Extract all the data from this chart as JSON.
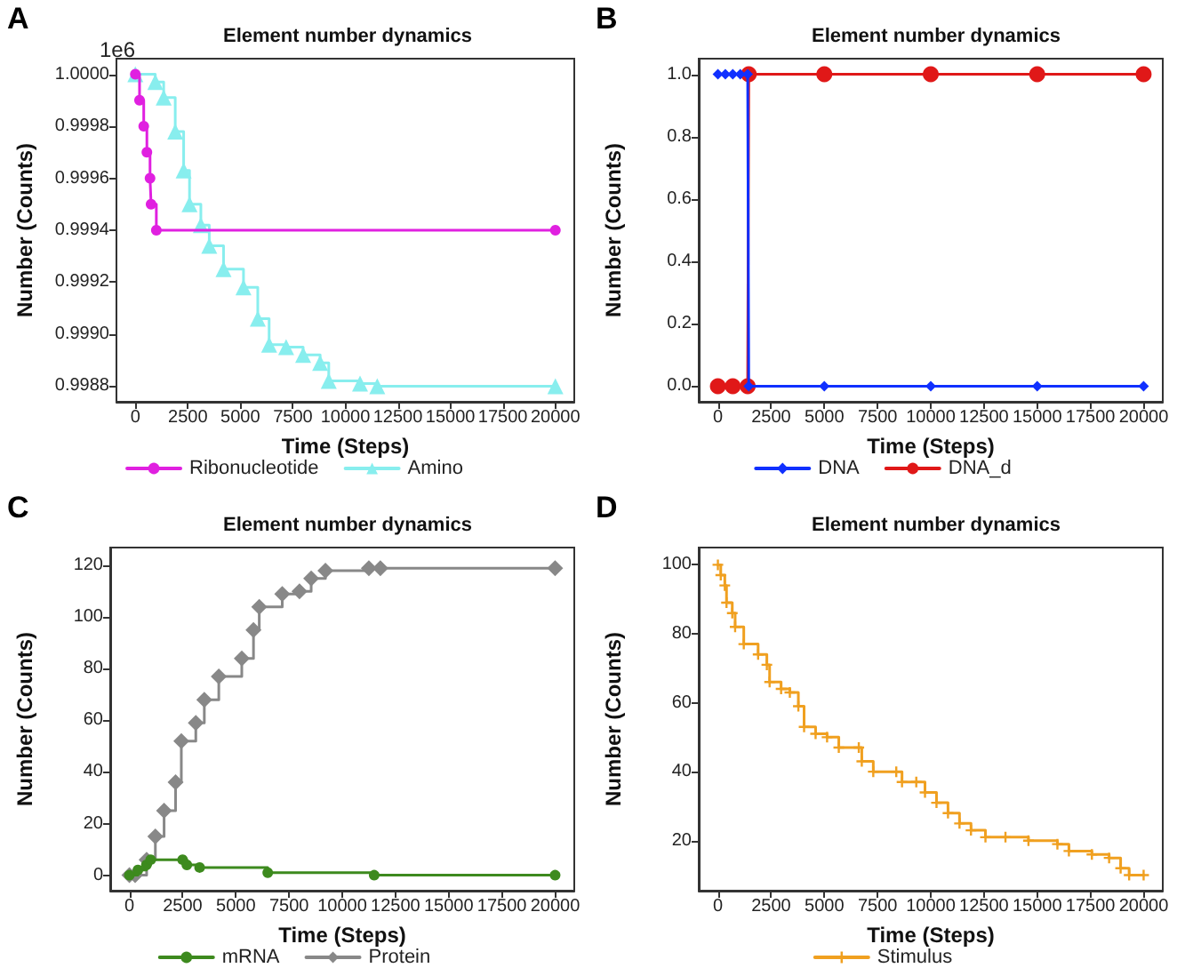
{
  "chart_data": [
    {
      "type": "step",
      "title": "Element number dynamics",
      "xlabel": "Time (Steps)",
      "ylabel": "Number (Counts)",
      "annotations": [
        "A",
        "1e6"
      ],
      "legend": "bottom",
      "grid": false,
      "xlim": [
        -900,
        20900
      ],
      "xticks": [
        0,
        2500,
        5000,
        7500,
        10000,
        12500,
        15000,
        17500,
        20000
      ],
      "ylim": [
        0.99874,
        1.00006
      ],
      "yticks": [
        {
          "value": 0.9988,
          "label": "0.9988"
        },
        {
          "value": 0.999,
          "label": "0.9990"
        },
        {
          "value": 0.9992,
          "label": "0.9992"
        },
        {
          "value": 0.9994,
          "label": "0.9994"
        },
        {
          "value": 0.9996,
          "label": "0.9996"
        },
        {
          "value": 0.9998,
          "label": "0.9998"
        },
        {
          "value": 1,
          "label": "1.0000"
        }
      ],
      "series": [
        {
          "name": "Ribonucleotide",
          "color": "#e020e0",
          "marker": "circle",
          "x": [
            0,
            200,
            400,
            550,
            700,
            750,
            1000,
            20000
          ],
          "values": [
            1.0,
            0.9999,
            0.9998,
            0.9997,
            0.9996,
            0.9995,
            0.9994,
            0.9994
          ]
        },
        {
          "name": "Amino",
          "color": "#88eeee",
          "marker": "triangle",
          "x": [
            0,
            950,
            1350,
            1900,
            2300,
            2580,
            3120,
            3520,
            4200,
            5150,
            5830,
            6370,
            7180,
            7990,
            8800,
            9210,
            10700,
            11520,
            20000
          ],
          "values": [
            1.0,
            0.99997,
            0.99991,
            0.99978,
            0.99963,
            0.9995,
            0.99942,
            0.99934,
            0.99925,
            0.99918,
            0.99906,
            0.99896,
            0.99895,
            0.99892,
            0.99889,
            0.99882,
            0.99881,
            0.9988,
            0.9988
          ]
        }
      ]
    },
    {
      "type": "step",
      "title": "Element number dynamics",
      "xlabel": "Time (Steps)",
      "ylabel": "Number (Counts)",
      "annotations": [
        "B"
      ],
      "legend": "bottom",
      "grid": false,
      "xlim": [
        -900,
        20900
      ],
      "xticks": [
        0,
        2500,
        5000,
        7500,
        10000,
        12500,
        15000,
        17500,
        20000
      ],
      "ylim": [
        -0.05,
        1.05
      ],
      "yticks": [
        {
          "value": 0,
          "label": "0.0"
        },
        {
          "value": 0.2,
          "label": "0.2"
        },
        {
          "value": 0.4,
          "label": "0.4"
        },
        {
          "value": 0.6,
          "label": "0.6"
        },
        {
          "value": 0.8,
          "label": "0.8"
        },
        {
          "value": 1,
          "label": "1.0"
        }
      ],
      "series": [
        {
          "name": "DNA",
          "color": "#1030ff",
          "marker": "diamond",
          "x": [
            0,
            350,
            700,
            1050,
            1400,
            1450,
            5000,
            10000,
            15000,
            20000
          ],
          "values": [
            1,
            1,
            1,
            1,
            1,
            0,
            0,
            0,
            0,
            0
          ]
        },
        {
          "name": "DNA_d",
          "color": "#e01818",
          "marker": "circle",
          "x": [
            0,
            700,
            1400,
            1450,
            5000,
            10000,
            15000,
            20000
          ],
          "values": [
            0,
            0,
            0,
            1,
            1,
            1,
            1,
            1
          ]
        }
      ]
    },
    {
      "type": "step",
      "title": "Element number dynamics",
      "xlabel": "Time (Steps)",
      "ylabel": "Number (Counts)",
      "annotations": [
        "C"
      ],
      "legend": "bottom",
      "grid": false,
      "xlim": [
        -900,
        20900
      ],
      "xticks": [
        0,
        2500,
        5000,
        7500,
        10000,
        12500,
        15000,
        17500,
        20000
      ],
      "ylim": [
        -6,
        127
      ],
      "yticks": [
        0,
        20,
        40,
        60,
        80,
        100,
        120
      ],
      "series": [
        {
          "name": "mRNA",
          "color": "#3d8a1e",
          "marker": "circle",
          "x": [
            0,
            400,
            800,
            1000,
            2500,
            2700,
            3300,
            6500,
            11500,
            20000
          ],
          "values": [
            0,
            2,
            4,
            6,
            6,
            4,
            3,
            1,
            0,
            0
          ]
        },
        {
          "name": "Protein",
          "color": "#888888",
          "marker": "diamond",
          "x": [
            0,
            270,
            810,
            1220,
            1630,
            2170,
            2440,
            3120,
            3520,
            4200,
            5280,
            5830,
            6100,
            7180,
            7990,
            8540,
            9210,
            11250,
            11790,
            20000
          ],
          "values": [
            0,
            0,
            6,
            15,
            25,
            36,
            52,
            59,
            68,
            77,
            84,
            95,
            104,
            109,
            110,
            115,
            118,
            119,
            119,
            119
          ]
        }
      ]
    },
    {
      "type": "step",
      "title": "Element number dynamics",
      "xlabel": "Time (Steps)",
      "ylabel": "Number (Counts)",
      "annotations": [
        "D"
      ],
      "legend": "bottom",
      "grid": false,
      "xlim": [
        -900,
        20900
      ],
      "xticks": [
        0,
        2500,
        5000,
        7500,
        10000,
        12500,
        15000,
        17500,
        20000
      ],
      "ylim": [
        5.5,
        105
      ],
      "yticks": [
        20,
        40,
        60,
        80,
        100
      ],
      "series": [
        {
          "name": "Stimulus",
          "color": "#f0a020",
          "marker": "cross",
          "x": [
            0,
            135,
            324,
            405,
            676,
            810,
            1216,
            1890,
            2300,
            2430,
            2970,
            3380,
            3780,
            4050,
            4590,
            5130,
            5680,
            6620,
            6760,
            7300,
            8380,
            8650,
            9320,
            9730,
            10270,
            10810,
            11350,
            11890,
            12570,
            13510,
            14590,
            15950,
            16490,
            17570,
            18380,
            18920,
            19320,
            20000
          ],
          "values": [
            100,
            97,
            94,
            89,
            86,
            82,
            77,
            74,
            71,
            66,
            64,
            63,
            59,
            53,
            51,
            50,
            47,
            47,
            43,
            40,
            40,
            37,
            37,
            34,
            31,
            28,
            25,
            23,
            21,
            21,
            20,
            19,
            17,
            16,
            15,
            12,
            10,
            10
          ]
        }
      ]
    }
  ]
}
